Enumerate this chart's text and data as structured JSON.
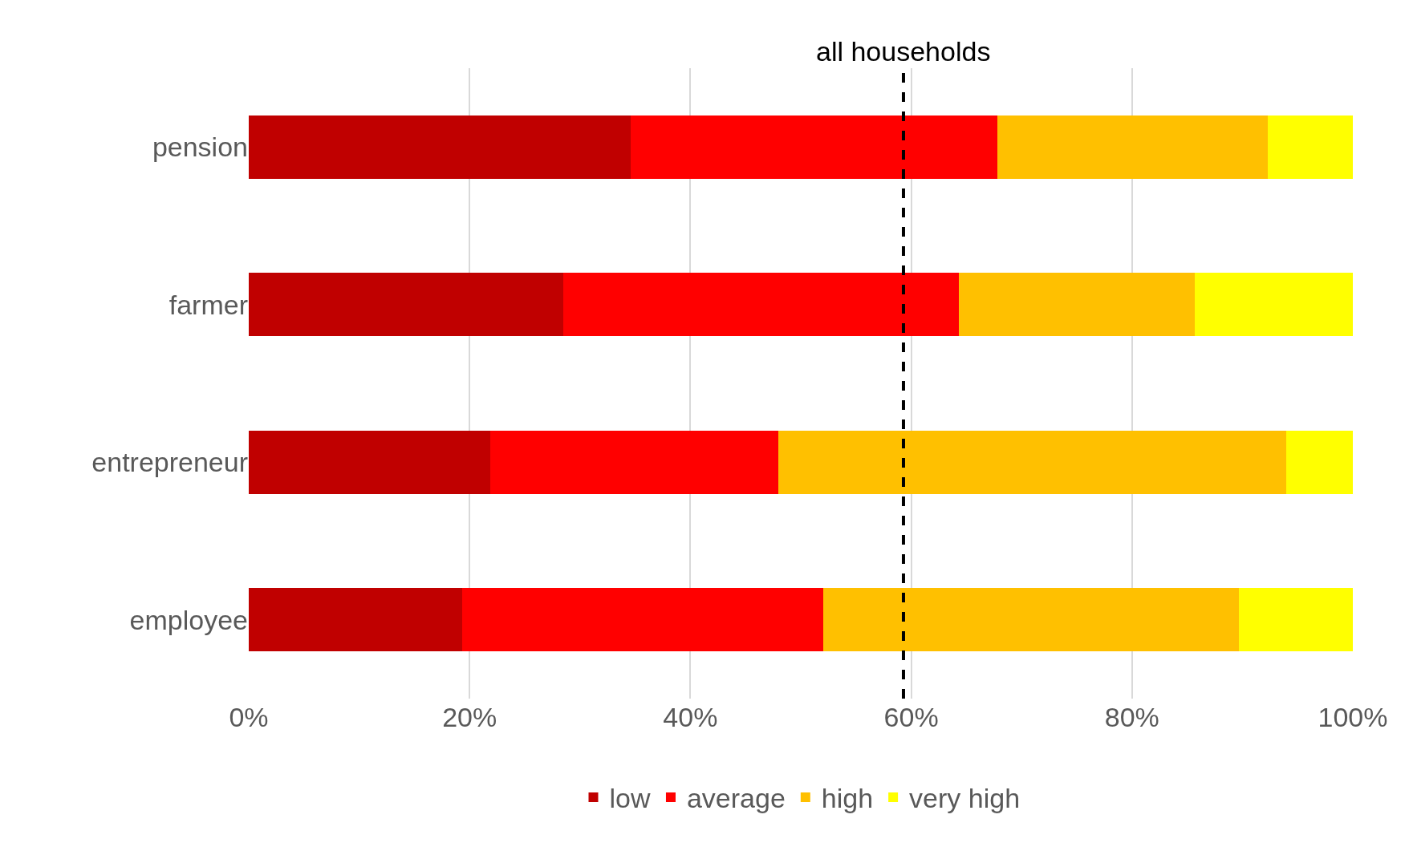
{
  "chart_data": {
    "type": "bar",
    "orientation": "horizontal",
    "stacked": true,
    "categories": [
      "pension",
      "farmer",
      "entrepreneur",
      "employee"
    ],
    "series": [
      {
        "name": "low",
        "color": "#c00000",
        "values": [
          34.6,
          28.5,
          21.9,
          19.3
        ]
      },
      {
        "name": "average",
        "color": "#ff0000",
        "values": [
          33.2,
          35.8,
          26.1,
          32.7
        ]
      },
      {
        "name": "high",
        "color": "#ffc000",
        "values": [
          24.5,
          21.4,
          46.0,
          37.7
        ]
      },
      {
        "name": "very high",
        "color": "#ffff00",
        "values": [
          7.7,
          14.3,
          6.0,
          10.3
        ]
      }
    ],
    "xlim": [
      0,
      100
    ],
    "xticks": [
      {
        "value": 0,
        "label": "0%"
      },
      {
        "value": 20,
        "label": "20%"
      },
      {
        "value": 40,
        "label": "40%"
      },
      {
        "value": 60,
        "label": "60%"
      },
      {
        "value": 80,
        "label": "80%"
      },
      {
        "value": 100,
        "label": "100%"
      }
    ],
    "ref_lines": [
      {
        "axis": "x",
        "value": 59.3,
        "label": "all households",
        "color": "#000000",
        "line_style": "dashed"
      }
    ],
    "grid": "x",
    "legend": "bottom"
  }
}
